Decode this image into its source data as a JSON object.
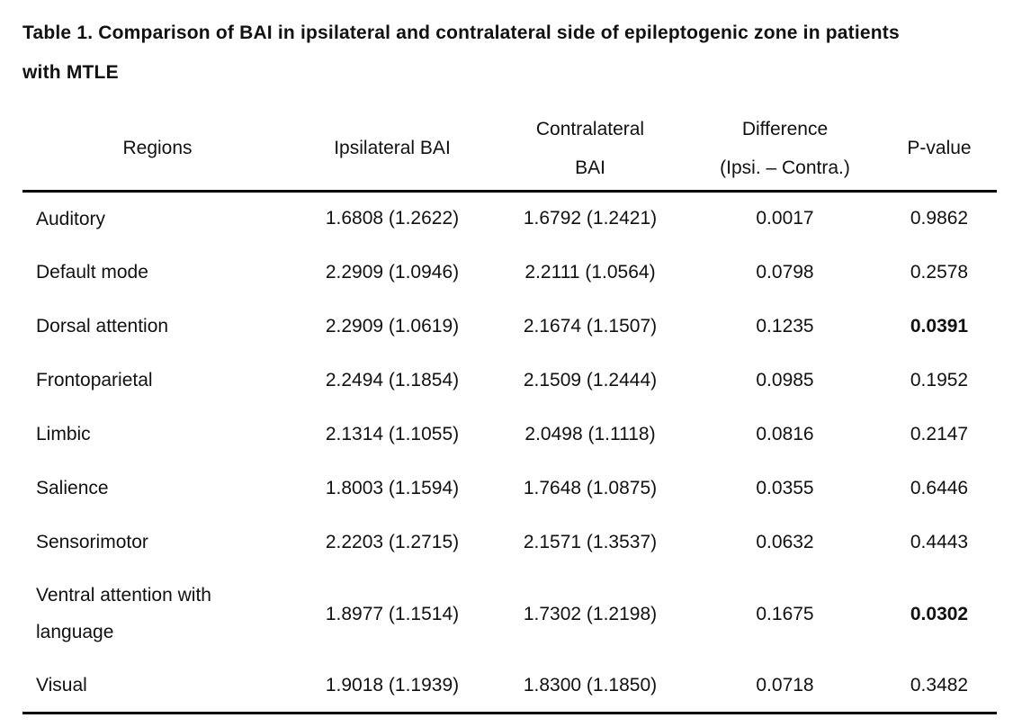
{
  "title": {
    "lines": [
      "Table 1. Comparison of BAI in ipsilateral and contralateral side of epileptogenic zone in patients",
      "with MTLE"
    ]
  },
  "table": {
    "header": {
      "regions": "Regions",
      "ipsilateral": "Ipsilateral BAI",
      "contralateral_line1": "Contralateral",
      "contralateral_line2": "BAI",
      "difference_line1": "Difference",
      "difference_line2": "(Ipsi. – Contra.)",
      "p_value": "P-value"
    },
    "rows": [
      {
        "region": "Auditory",
        "ipsilateral": "1.6808 (1.2622)",
        "contralateral": "1.6792 (1.2421)",
        "difference": "0.0017",
        "p_value": "0.9862",
        "significant": false
      },
      {
        "region": "Default mode",
        "ipsilateral": "2.2909 (1.0946)",
        "contralateral": "2.2111 (1.0564)",
        "difference": "0.0798",
        "p_value": "0.2578",
        "significant": false
      },
      {
        "region": "Dorsal attention",
        "ipsilateral": "2.2909 (1.0619)",
        "contralateral": "2.1674 (1.1507)",
        "difference": "0.1235",
        "p_value": "0.0391",
        "significant": true
      },
      {
        "region": "Frontoparietal",
        "ipsilateral": "2.2494 (1.1854)",
        "contralateral": "2.1509 (1.2444)",
        "difference": "0.0985",
        "p_value": "0.1952",
        "significant": false
      },
      {
        "region": "Limbic",
        "ipsilateral": "2.1314 (1.1055)",
        "contralateral": "2.0498 (1.1118)",
        "difference": "0.0816",
        "p_value": "0.2147",
        "significant": false
      },
      {
        "region": "Salience",
        "ipsilateral": "1.8003 (1.1594)",
        "contralateral": "1.7648 (1.0875)",
        "difference": "0.0355",
        "p_value": "0.6446",
        "significant": false
      },
      {
        "region": "Sensorimotor",
        "ipsilateral": "2.2203 (1.2715)",
        "contralateral": "2.1571 (1.3537)",
        "difference": "0.0632",
        "p_value": "0.4443",
        "significant": false
      },
      {
        "region": "Ventral attention with language",
        "ipsilateral": "1.8977 (1.1514)",
        "contralateral": "1.7302 (1.2198)",
        "difference": "0.1675",
        "p_value": "0.0302",
        "significant": true
      },
      {
        "region": "Visual",
        "ipsilateral": "1.9018 (1.1939)",
        "contralateral": "1.8300 (1.1850)",
        "difference": "0.0718",
        "p_value": "0.3482",
        "significant": false
      }
    ]
  },
  "colors": {
    "text": "#111111",
    "rule": "#000000",
    "background": "#ffffff"
  }
}
